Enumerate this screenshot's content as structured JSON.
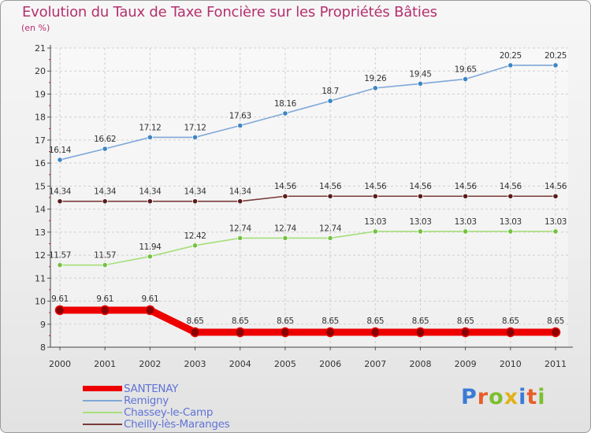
{
  "title": "Evolution du Taux de Taxe Foncière sur les Propriétés Bâties",
  "unit_label": "(en %)",
  "logo_text": "Proxiti",
  "logo_colors": [
    "#3a7bd5",
    "#e85d28",
    "#7cbf2e",
    "#e2b21b",
    "#3a7bd5",
    "#e85d28",
    "#7cbf2e"
  ],
  "chart_data": {
    "type": "line",
    "x": [
      "2000",
      "2001",
      "2002",
      "2003",
      "2004",
      "2005",
      "2006",
      "2007",
      "2008",
      "2009",
      "2010",
      "2011"
    ],
    "ylim": [
      8,
      21
    ],
    "yticks": [
      "8",
      "9",
      "10",
      "11",
      "12",
      "13",
      "14",
      "15",
      "16",
      "17",
      "18",
      "19",
      "20",
      "21"
    ],
    "grid": true,
    "legend_position": "bottom-left",
    "series": [
      {
        "name": "SANTENAY",
        "color": "#ee0000",
        "marker_color": "#8b0000",
        "emphasis": true,
        "values": [
          9.61,
          9.61,
          9.61,
          8.65,
          8.65,
          8.65,
          8.65,
          8.65,
          8.65,
          8.65,
          8.65,
          8.65
        ],
        "labels": [
          "9.61",
          "9.61",
          "9.61",
          "8.65",
          "8.65",
          "8.65",
          "8.65",
          "8.65",
          "8.65",
          "8.65",
          "8.65",
          "8.65"
        ]
      },
      {
        "name": "Remigny",
        "color": "#7fa8d8",
        "marker_color": "#3d86c4",
        "values": [
          16.14,
          16.62,
          17.12,
          17.12,
          17.63,
          18.16,
          18.7,
          19.26,
          19.45,
          19.65,
          20.25,
          20.25
        ],
        "labels": [
          "16.14",
          "16.62",
          "17.12",
          "17.12",
          "17.63",
          "18.16",
          "18.7",
          "19.26",
          "19.45",
          "19.65",
          "20.25",
          "20.25"
        ]
      },
      {
        "name": "Chassey-le-Camp",
        "color": "#a6df7a",
        "marker_color": "#76c043",
        "values": [
          11.57,
          11.57,
          11.94,
          12.42,
          12.74,
          12.74,
          12.74,
          13.03,
          13.03,
          13.03,
          13.03,
          13.03
        ],
        "labels": [
          "11.57",
          "11.57",
          "11.94",
          "12.42",
          "12.74",
          "12.74",
          "12.74",
          "13.03",
          "13.03",
          "13.03",
          "13.03",
          "13.03"
        ]
      },
      {
        "name": "Cheilly-lès-Maranges",
        "color": "#7a3a3a",
        "marker_color": "#5a1c1c",
        "values": [
          14.34,
          14.34,
          14.34,
          14.34,
          14.34,
          14.56,
          14.56,
          14.56,
          14.56,
          14.56,
          14.56,
          14.56
        ],
        "labels": [
          "14.34",
          "14.34",
          "14.34",
          "14.34",
          "14.34",
          "14.56",
          "14.56",
          "14.56",
          "14.56",
          "14.56",
          "14.56",
          "14.56"
        ]
      }
    ]
  }
}
